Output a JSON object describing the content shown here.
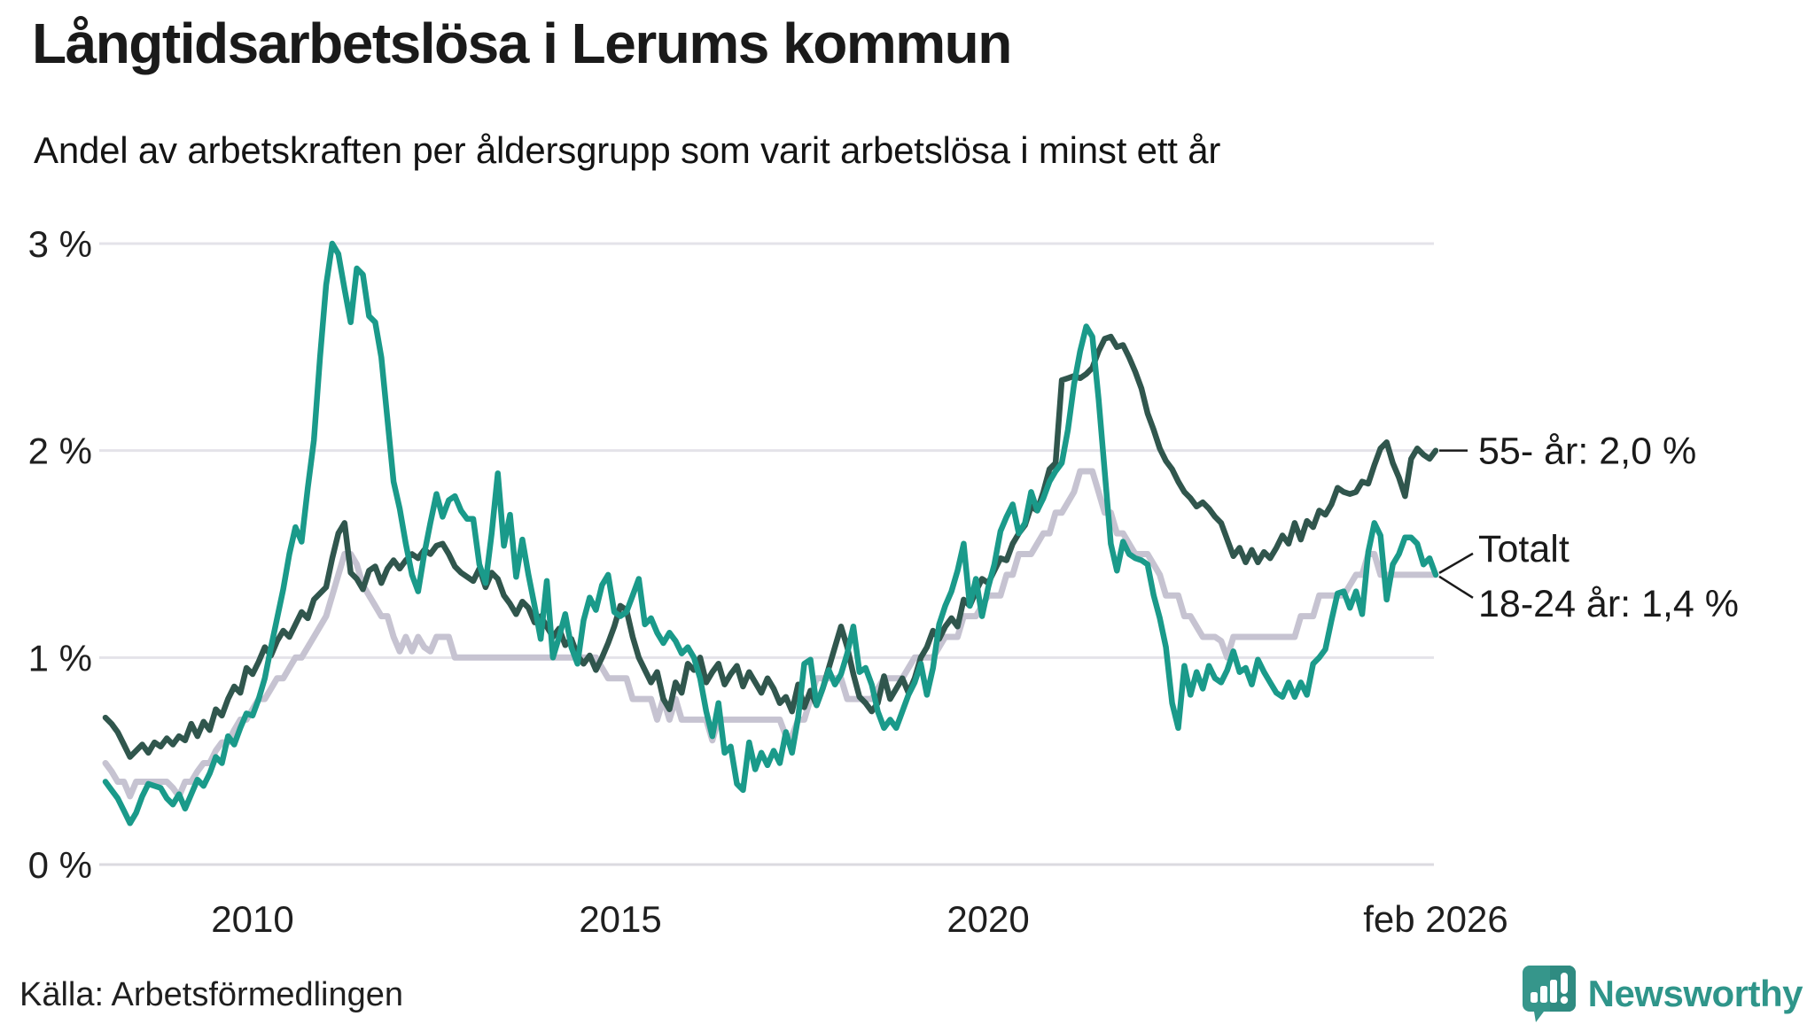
{
  "header": {
    "title": "Långtidsarbetslösa i Lerums kommun",
    "subtitle": "Andel av arbetskraften per åldersgrupp som varit arbetslösa i minst ett år"
  },
  "footer": {
    "source": "Källa: Arbetsförmedlingen",
    "brand_name": "Newsworthy",
    "brand_icon": "newsworthy-speech-bubble-bar-chart-icon",
    "brand_color": "#36968b"
  },
  "chart_data": {
    "type": "line",
    "title": "Långtidsarbetslösa i Lerums kommun",
    "subtitle": "Andel av arbetskraften per åldersgrupp som varit arbetslösa i minst ett år",
    "xlabel": "",
    "ylabel": "",
    "x_start_year": 2008,
    "x_step_months": 1,
    "x_end": "feb 2026",
    "ylim": [
      0,
      3
    ],
    "grid": true,
    "y_ticks": [
      {
        "v": 0,
        "label": "0 %"
      },
      {
        "v": 1,
        "label": "1 %"
      },
      {
        "v": 2,
        "label": "2 %"
      },
      {
        "v": 3,
        "label": "3 %"
      }
    ],
    "x_ticks": [
      {
        "t": 2010,
        "label": "2010"
      },
      {
        "t": 2015,
        "label": "2015"
      },
      {
        "t": 2020,
        "label": "2020"
      },
      {
        "t": 2026.083,
        "label": "feb 2026"
      }
    ],
    "colors": {
      "teal": "#1a9a8a",
      "dark_green": "#30564d",
      "gray": "#c6c3d1",
      "grid": "#e4e3e9",
      "grid_zero": "#dbdae0",
      "axis_text": "#1f1f1f",
      "annotation_text": "#1a1a1a"
    },
    "annotations": [
      {
        "text": "55- år: 2,0 %",
        "series": "55- år",
        "value": 2.0,
        "style": "dash"
      },
      {
        "text": "Totalt",
        "series": "Totalt",
        "value": 1.4,
        "style": "fork-up"
      },
      {
        "text": "18-24 år: 1,4 %",
        "series": "18-24 år",
        "value": 1.4,
        "style": "fork-down"
      }
    ],
    "series": [
      {
        "name": "Totalt",
        "color": "#c6c3d1",
        "stroke_width": 7,
        "end_value_pct": 1.4,
        "values": [
          0.49,
          0.45,
          0.4,
          0.4,
          0.33,
          0.4,
          0.4,
          0.4,
          0.4,
          0.4,
          0.4,
          0.37,
          0.33,
          0.4,
          0.4,
          0.45,
          0.49,
          0.49,
          0.55,
          0.59,
          0.59,
          0.65,
          0.7,
          0.7,
          0.75,
          0.8,
          0.8,
          0.85,
          0.9,
          0.9,
          0.95,
          1.0,
          1.0,
          1.05,
          1.1,
          1.15,
          1.2,
          1.3,
          1.4,
          1.5,
          1.5,
          1.45,
          1.35,
          1.3,
          1.25,
          1.2,
          1.2,
          1.1,
          1.03,
          1.1,
          1.03,
          1.1,
          1.05,
          1.03,
          1.1,
          1.1,
          1.1,
          1.0,
          1.0,
          1.0,
          1.0,
          1.0,
          1.0,
          1.0,
          1.0,
          1.0,
          1.0,
          1.0,
          1.0,
          1.0,
          1.0,
          1.0,
          1.0,
          1.0,
          1.0,
          1.0,
          1.0,
          1.0,
          1.0,
          1.0,
          1.0,
          0.95,
          0.9,
          0.9,
          0.9,
          0.9,
          0.8,
          0.8,
          0.8,
          0.8,
          0.7,
          0.8,
          0.7,
          0.8,
          0.7,
          0.7,
          0.7,
          0.7,
          0.7,
          0.6,
          0.7,
          0.7,
          0.7,
          0.7,
          0.7,
          0.7,
          0.7,
          0.7,
          0.7,
          0.7,
          0.7,
          0.62,
          0.62,
          0.7,
          0.7,
          0.8,
          0.9,
          0.9,
          0.9,
          0.9,
          0.9,
          0.8,
          0.8,
          0.8,
          0.8,
          0.8,
          0.85,
          0.9,
          0.9,
          0.9,
          0.9,
          0.95,
          1.0,
          1.0,
          1.0,
          1.0,
          1.05,
          1.1,
          1.1,
          1.1,
          1.2,
          1.2,
          1.2,
          1.25,
          1.3,
          1.3,
          1.3,
          1.4,
          1.4,
          1.5,
          1.5,
          1.5,
          1.55,
          1.6,
          1.6,
          1.7,
          1.7,
          1.75,
          1.8,
          1.9,
          1.9,
          1.9,
          1.8,
          1.7,
          1.7,
          1.6,
          1.6,
          1.55,
          1.5,
          1.5,
          1.5,
          1.45,
          1.4,
          1.3,
          1.3,
          1.3,
          1.2,
          1.2,
          1.15,
          1.1,
          1.1,
          1.1,
          1.08,
          1.0,
          1.1,
          1.1,
          1.1,
          1.1,
          1.1,
          1.1,
          1.1,
          1.1,
          1.1,
          1.1,
          1.1,
          1.2,
          1.2,
          1.2,
          1.3,
          1.3,
          1.3,
          1.3,
          1.3,
          1.35,
          1.4,
          1.4,
          1.5,
          1.5,
          1.4,
          1.4,
          1.4,
          1.4,
          1.4,
          1.4,
          1.4,
          1.4,
          1.4,
          1.4
        ]
      },
      {
        "name": "55- år",
        "color": "#30564d",
        "stroke_width": 6.5,
        "end_value_pct": 2.0,
        "values": [
          0.71,
          0.68,
          0.64,
          0.58,
          0.52,
          0.55,
          0.58,
          0.54,
          0.59,
          0.57,
          0.61,
          0.58,
          0.62,
          0.6,
          0.68,
          0.62,
          0.69,
          0.65,
          0.75,
          0.72,
          0.8,
          0.86,
          0.83,
          0.95,
          0.92,
          0.98,
          1.05,
          1.01,
          1.08,
          1.13,
          1.1,
          1.16,
          1.22,
          1.19,
          1.28,
          1.31,
          1.34,
          1.48,
          1.6,
          1.65,
          1.41,
          1.38,
          1.33,
          1.42,
          1.44,
          1.36,
          1.43,
          1.47,
          1.43,
          1.47,
          1.5,
          1.48,
          1.52,
          1.5,
          1.54,
          1.55,
          1.5,
          1.44,
          1.41,
          1.39,
          1.37,
          1.43,
          1.34,
          1.41,
          1.38,
          1.3,
          1.26,
          1.21,
          1.27,
          1.24,
          1.17,
          1.2,
          1.15,
          1.1,
          1.14,
          1.06,
          1.09,
          1.01,
          0.97,
          1.01,
          0.94,
          1.0,
          1.07,
          1.15,
          1.25,
          1.23,
          1.1,
          1.0,
          0.94,
          0.88,
          0.93,
          0.8,
          0.75,
          0.88,
          0.83,
          0.97,
          0.94,
          1.0,
          0.88,
          0.93,
          0.97,
          0.87,
          0.92,
          0.96,
          0.86,
          0.93,
          0.88,
          0.83,
          0.9,
          0.85,
          0.78,
          0.81,
          0.74,
          0.87,
          0.76,
          0.84,
          0.77,
          0.85,
          0.95,
          1.05,
          1.15,
          1.05,
          0.92,
          0.81,
          0.78,
          0.74,
          0.78,
          0.91,
          0.8,
          0.85,
          0.9,
          0.83,
          0.9,
          1.0,
          1.05,
          1.13,
          1.09,
          1.15,
          1.19,
          1.15,
          1.28,
          1.25,
          1.32,
          1.38,
          1.36,
          1.42,
          1.48,
          1.47,
          1.55,
          1.6,
          1.64,
          1.73,
          1.71,
          1.8,
          1.91,
          1.94,
          2.34,
          2.35,
          2.36,
          2.35,
          2.37,
          2.4,
          2.48,
          2.54,
          2.55,
          2.5,
          2.51,
          2.45,
          2.38,
          2.3,
          2.18,
          2.1,
          2.01,
          1.95,
          1.91,
          1.85,
          1.8,
          1.77,
          1.73,
          1.75,
          1.72,
          1.68,
          1.65,
          1.57,
          1.49,
          1.53,
          1.46,
          1.52,
          1.46,
          1.51,
          1.48,
          1.53,
          1.59,
          1.55,
          1.65,
          1.57,
          1.66,
          1.63,
          1.71,
          1.69,
          1.74,
          1.82,
          1.8,
          1.79,
          1.8,
          1.85,
          1.84,
          1.93,
          2.01,
          2.04,
          1.94,
          1.87,
          1.78,
          1.96,
          2.01,
          1.98,
          1.96,
          2.0
        ]
      },
      {
        "name": "18-24 år",
        "color": "#1a9a8a",
        "stroke_width": 6.5,
        "end_value_pct": 1.4,
        "values": [
          0.4,
          0.36,
          0.32,
          0.26,
          0.2,
          0.25,
          0.33,
          0.39,
          0.38,
          0.37,
          0.32,
          0.29,
          0.34,
          0.27,
          0.34,
          0.41,
          0.38,
          0.44,
          0.52,
          0.49,
          0.62,
          0.58,
          0.66,
          0.73,
          0.72,
          0.8,
          0.9,
          1.05,
          1.19,
          1.33,
          1.5,
          1.63,
          1.56,
          1.82,
          2.05,
          2.45,
          2.8,
          3.0,
          2.95,
          2.78,
          2.62,
          2.88,
          2.85,
          2.65,
          2.62,
          2.45,
          2.15,
          1.85,
          1.72,
          1.55,
          1.4,
          1.32,
          1.5,
          1.65,
          1.79,
          1.68,
          1.76,
          1.78,
          1.71,
          1.67,
          1.67,
          1.45,
          1.36,
          1.6,
          1.89,
          1.54,
          1.69,
          1.39,
          1.57,
          1.4,
          1.25,
          1.09,
          1.37,
          1.0,
          1.1,
          1.21,
          1.05,
          0.97,
          1.18,
          1.29,
          1.23,
          1.35,
          1.4,
          1.22,
          1.2,
          1.22,
          1.3,
          1.38,
          1.16,
          1.19,
          1.12,
          1.07,
          1.12,
          1.08,
          1.02,
          1.05,
          1.0,
          0.9,
          0.74,
          0.62,
          0.78,
          0.54,
          0.57,
          0.39,
          0.36,
          0.59,
          0.46,
          0.54,
          0.48,
          0.55,
          0.49,
          0.64,
          0.54,
          0.71,
          0.97,
          0.99,
          0.77,
          0.85,
          0.94,
          0.87,
          0.92,
          1.02,
          1.15,
          0.93,
          0.95,
          0.87,
          0.74,
          0.66,
          0.7,
          0.66,
          0.74,
          0.82,
          0.88,
          0.97,
          0.82,
          0.95,
          1.16,
          1.25,
          1.32,
          1.42,
          1.55,
          1.25,
          1.38,
          1.2,
          1.34,
          1.45,
          1.61,
          1.68,
          1.74,
          1.6,
          1.65,
          1.8,
          1.71,
          1.77,
          1.85,
          1.9,
          1.94,
          2.1,
          2.32,
          2.48,
          2.6,
          2.55,
          2.25,
          1.9,
          1.55,
          1.42,
          1.56,
          1.5,
          1.48,
          1.47,
          1.45,
          1.3,
          1.19,
          1.05,
          0.78,
          0.66,
          0.96,
          0.82,
          0.93,
          0.85,
          0.96,
          0.9,
          0.88,
          0.94,
          1.03,
          0.93,
          0.95,
          0.87,
          0.99,
          0.93,
          0.88,
          0.83,
          0.81,
          0.88,
          0.81,
          0.88,
          0.82,
          0.97,
          1.0,
          1.04,
          1.18,
          1.31,
          1.32,
          1.24,
          1.32,
          1.21,
          1.51,
          1.65,
          1.59,
          1.28,
          1.45,
          1.5,
          1.58,
          1.58,
          1.55,
          1.45,
          1.48,
          1.4
        ]
      }
    ]
  }
}
